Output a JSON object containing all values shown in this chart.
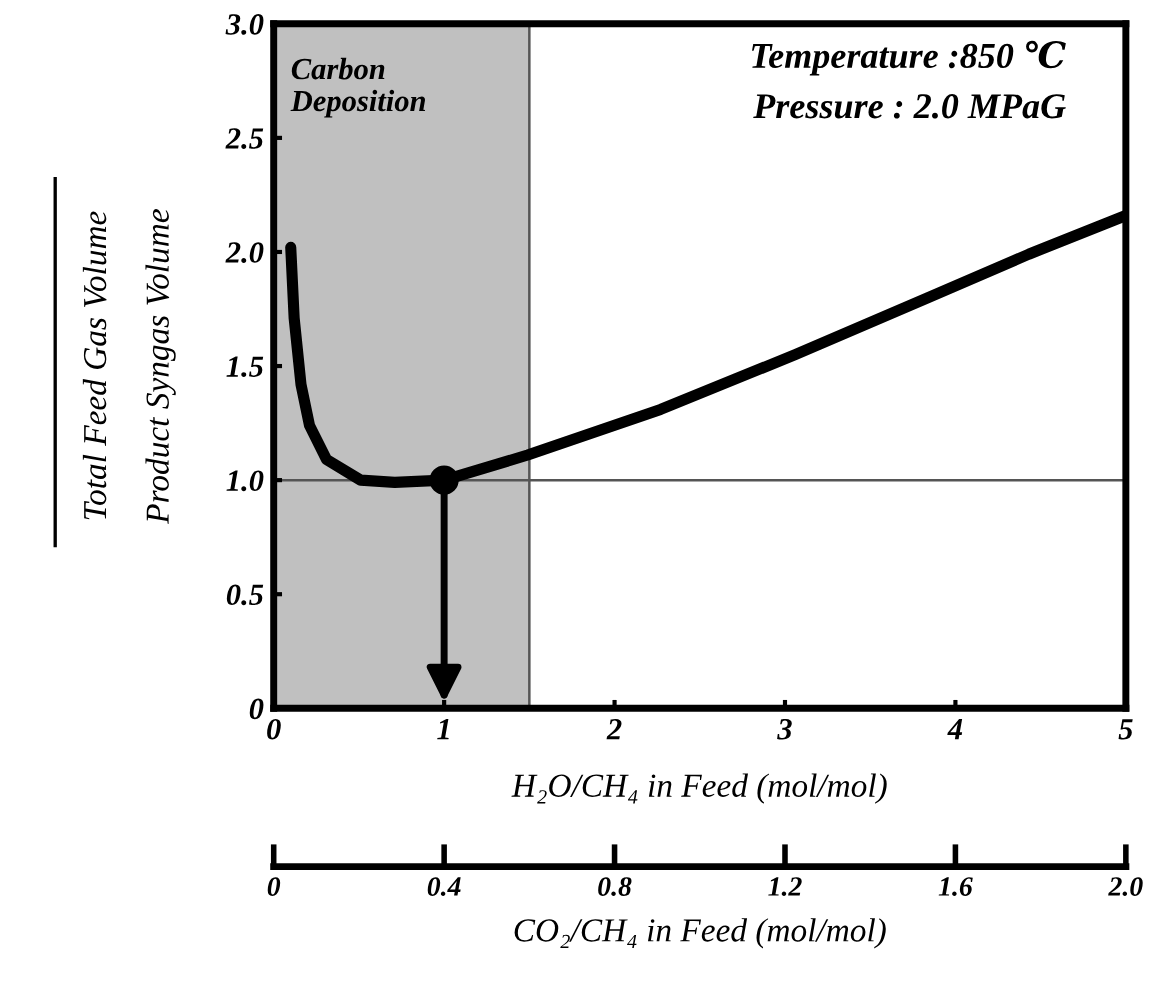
{
  "chart_data": {
    "type": "line",
    "xlabel": "H₂O/CH₄ in Feed (mol/mol)",
    "x2label": "CO₂/CH₄ in Feed (mol/mol)",
    "ylabel": "Total Feed Gas Volume\nProduct Syngas Volume",
    "xlim": [
      0,
      5
    ],
    "xticks": [
      0,
      1,
      2,
      3,
      4,
      5
    ],
    "x2lim": [
      0,
      2
    ],
    "x2ticks": [
      0,
      0.4,
      0.8,
      1.2,
      1.6,
      {
        "value": 2,
        "label": "2.0"
      }
    ],
    "ylim": [
      0,
      3
    ],
    "yticks": [
      0,
      {
        "value": 0.5,
        "label": "0.5"
      },
      {
        "value": 1,
        "label": "1.0"
      },
      {
        "value": 1.5,
        "label": "1.5"
      },
      {
        "value": 2,
        "label": "2.0"
      },
      {
        "value": 2.5,
        "label": "2.5"
      },
      {
        "value": 3,
        "label": "3.0"
      }
    ],
    "grid": false,
    "legend": false,
    "series": [
      {
        "color": "#000000",
        "x": [
          0.1,
          0.12,
          0.16,
          0.21,
          0.31,
          0.51,
          0.71,
          1.0,
          1.49,
          2.27,
          3.06,
          3.84,
          4.43,
          5.0
        ],
        "values": [
          2.02,
          1.71,
          1.42,
          1.24,
          1.09,
          1.0,
          0.99,
          1.0,
          1.11,
          1.31,
          1.55,
          1.8,
          1.99,
          2.16
        ]
      },
      {
        "type": "scatter",
        "color": "#000000",
        "marker": "circle",
        "x": [
          1.0
        ],
        "values": [
          1.0
        ]
      }
    ],
    "bands": [
      {
        "axis": "x",
        "from": 0,
        "to": 1.5,
        "label": "Carbon Deposition",
        "color": "#c0c0c0"
      }
    ],
    "ref_lines": [
      {
        "axis": "y",
        "value": 1.0,
        "color": "#555555"
      },
      {
        "axis": "x",
        "value": 1.5,
        "color": "#555555"
      }
    ],
    "annotations": [
      "Temperature :850 ℃",
      "Pressure : 2.0 MPaG"
    ]
  }
}
